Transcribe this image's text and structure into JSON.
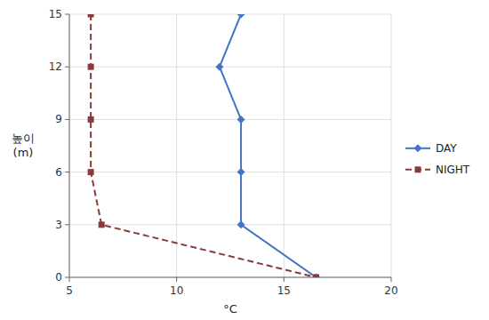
{
  "chart_data": {
    "type": "line",
    "xlabel": "°C",
    "ylabel": "높이\n(m)",
    "series": [
      {
        "name": "DAY",
        "color": "#4472C4",
        "marker": "diamond",
        "line_style": "solid",
        "x": [
          13,
          12,
          13,
          13,
          13,
          16.5
        ],
        "values": [
          15,
          12,
          9,
          6,
          3,
          0
        ]
      },
      {
        "name": "NIGHT",
        "color": "#8B3A3A",
        "marker": "square",
        "line_style": "dashed",
        "x": [
          6,
          6,
          6,
          6,
          6.5,
          16.5
        ],
        "values": [
          15,
          12,
          9,
          6,
          3,
          0
        ]
      }
    ],
    "xlim": [
      5,
      20
    ],
    "ylim": [
      0,
      15
    ],
    "xticks": [
      5,
      10,
      15,
      20
    ],
    "yticks": [
      0,
      3,
      6,
      9,
      12,
      15
    ],
    "grid": true,
    "legend": "right"
  }
}
